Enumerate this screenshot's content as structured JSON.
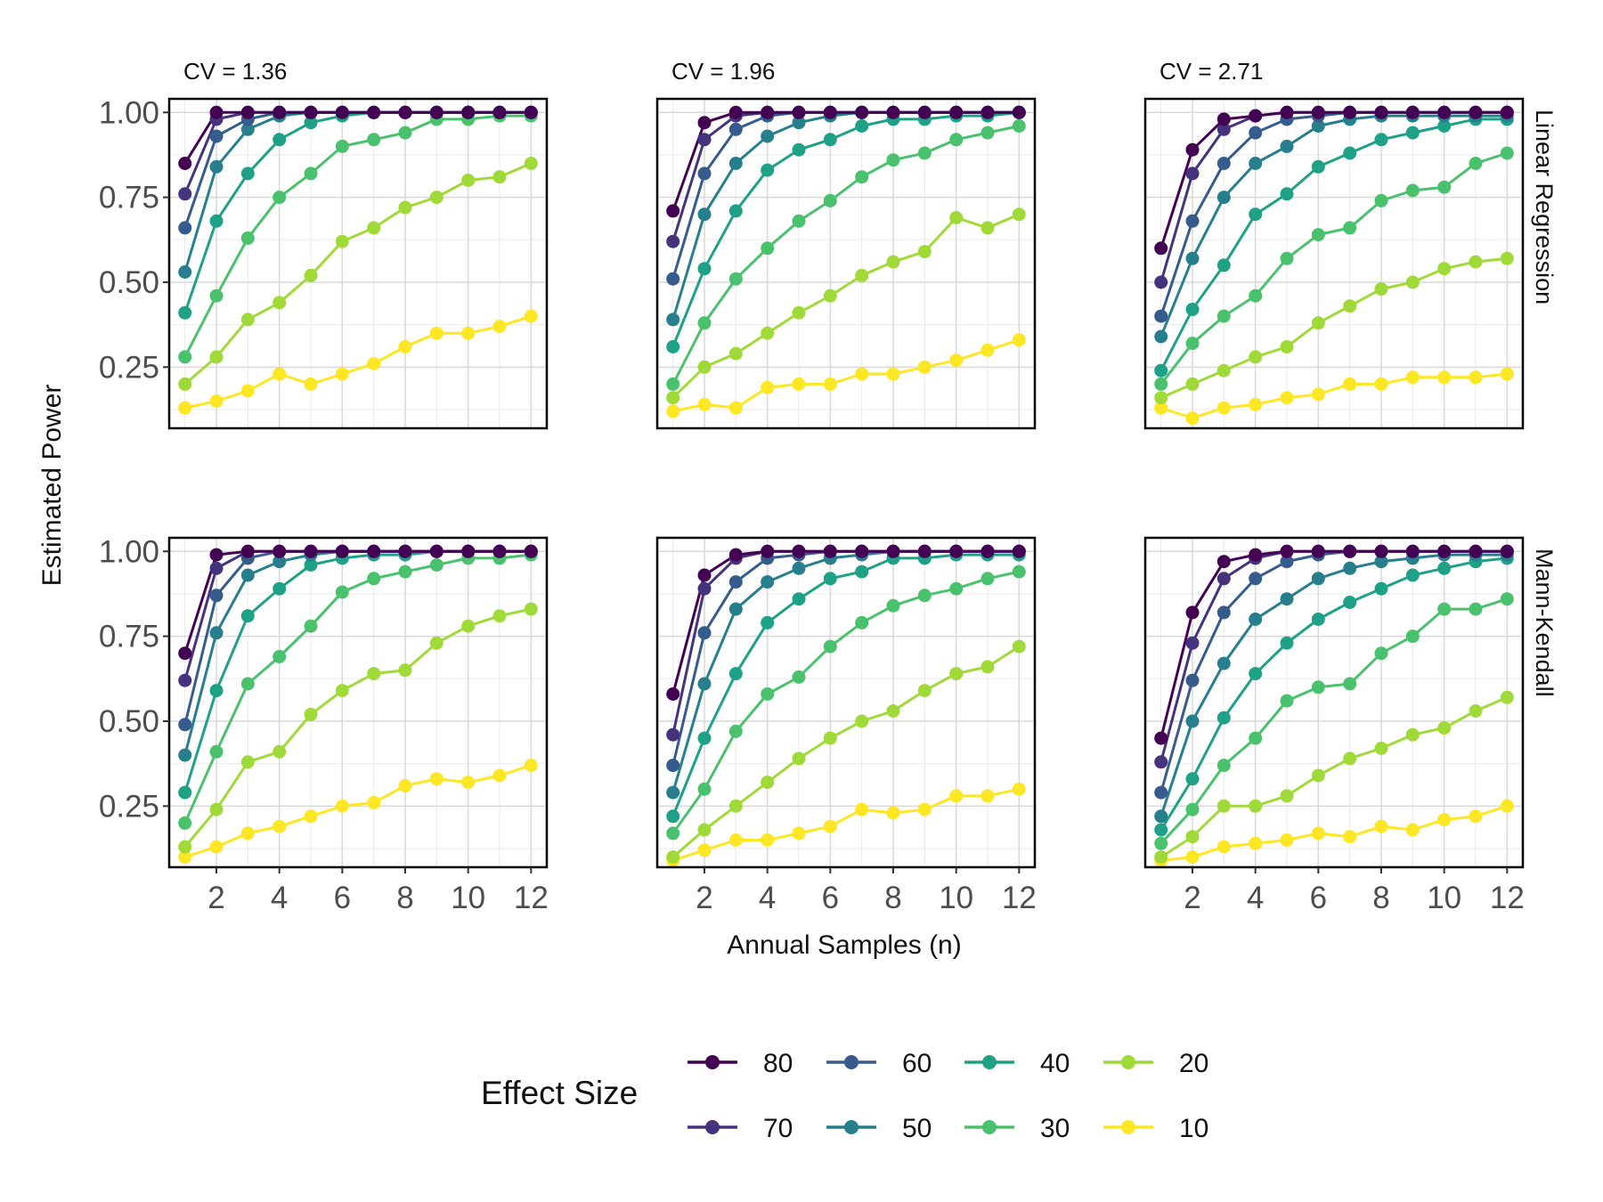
{
  "chart_data": {
    "type": "line",
    "x": [
      1,
      2,
      3,
      4,
      5,
      6,
      7,
      8,
      9,
      10,
      11,
      12
    ],
    "xlabel": "Annual Samples (n)",
    "ylabel": "Estimated Power",
    "x_ticks": [
      2,
      4,
      6,
      8,
      10,
      12
    ],
    "x_tick_labels": [
      "2",
      "4",
      "6",
      "8",
      "10",
      "12"
    ],
    "xlim": [
      0.5,
      12.5
    ],
    "y_ticks": [
      0.25,
      0.5,
      0.75,
      1.0
    ],
    "y_tick_labels": [
      "0.25",
      "0.50",
      "0.75",
      "1.00"
    ],
    "ylim": [
      0.07,
      1.04
    ],
    "grid": true,
    "columns": [
      "CV = 1.36",
      "CV = 1.96",
      "CV = 2.71"
    ],
    "rows": [
      "Linear Regression",
      "Mann-Kendall"
    ],
    "legend": {
      "title": "Effect Size",
      "position": "bottom",
      "entries": [
        "80",
        "60",
        "40",
        "20",
        "70",
        "50",
        "30",
        "10"
      ]
    },
    "series_colors": {
      "80": "#440154",
      "70": "#46337e",
      "60": "#365c8d",
      "50": "#277f8e",
      "40": "#1fa187",
      "30": "#4ac16d",
      "20": "#a0da39",
      "10": "#fde725"
    },
    "panels": [
      {
        "column": "CV = 1.36",
        "row": "Linear Regression",
        "series": [
          {
            "name": "80",
            "values": [
              0.85,
              1.0,
              1.0,
              1.0,
              1.0,
              1.0,
              1.0,
              1.0,
              1.0,
              1.0,
              1.0,
              1.0
            ]
          },
          {
            "name": "70",
            "values": [
              0.76,
              0.98,
              1.0,
              1.0,
              1.0,
              1.0,
              1.0,
              1.0,
              1.0,
              1.0,
              1.0,
              1.0
            ]
          },
          {
            "name": "60",
            "values": [
              0.66,
              0.93,
              0.98,
              1.0,
              1.0,
              1.0,
              1.0,
              1.0,
              1.0,
              1.0,
              1.0,
              1.0
            ]
          },
          {
            "name": "50",
            "values": [
              0.53,
              0.84,
              0.95,
              0.99,
              1.0,
              1.0,
              1.0,
              1.0,
              1.0,
              1.0,
              1.0,
              1.0
            ]
          },
          {
            "name": "40",
            "values": [
              0.41,
              0.68,
              0.82,
              0.92,
              0.97,
              0.99,
              1.0,
              1.0,
              1.0,
              1.0,
              1.0,
              1.0
            ]
          },
          {
            "name": "30",
            "values": [
              0.28,
              0.46,
              0.63,
              0.75,
              0.82,
              0.9,
              0.92,
              0.94,
              0.98,
              0.98,
              0.99,
              0.99
            ]
          },
          {
            "name": "20",
            "values": [
              0.2,
              0.28,
              0.39,
              0.44,
              0.52,
              0.62,
              0.66,
              0.72,
              0.75,
              0.8,
              0.81,
              0.85
            ]
          },
          {
            "name": "10",
            "values": [
              0.13,
              0.15,
              0.18,
              0.23,
              0.2,
              0.23,
              0.26,
              0.31,
              0.35,
              0.35,
              0.37,
              0.4
            ]
          }
        ]
      },
      {
        "column": "CV = 1.96",
        "row": "Linear Regression",
        "series": [
          {
            "name": "80",
            "values": [
              0.71,
              0.97,
              1.0,
              1.0,
              1.0,
              1.0,
              1.0,
              1.0,
              1.0,
              1.0,
              1.0,
              1.0
            ]
          },
          {
            "name": "70",
            "values": [
              0.62,
              0.92,
              0.99,
              1.0,
              1.0,
              1.0,
              1.0,
              1.0,
              1.0,
              1.0,
              1.0,
              1.0
            ]
          },
          {
            "name": "60",
            "values": [
              0.51,
              0.82,
              0.95,
              0.99,
              1.0,
              1.0,
              1.0,
              1.0,
              1.0,
              1.0,
              1.0,
              1.0
            ]
          },
          {
            "name": "50",
            "values": [
              0.39,
              0.7,
              0.85,
              0.93,
              0.97,
              0.99,
              1.0,
              1.0,
              1.0,
              1.0,
              1.0,
              1.0
            ]
          },
          {
            "name": "40",
            "values": [
              0.31,
              0.54,
              0.71,
              0.83,
              0.89,
              0.92,
              0.96,
              0.98,
              0.98,
              0.99,
              0.99,
              1.0
            ]
          },
          {
            "name": "30",
            "values": [
              0.2,
              0.38,
              0.51,
              0.6,
              0.68,
              0.74,
              0.81,
              0.86,
              0.88,
              0.92,
              0.94,
              0.96
            ]
          },
          {
            "name": "20",
            "values": [
              0.16,
              0.25,
              0.29,
              0.35,
              0.41,
              0.46,
              0.52,
              0.56,
              0.59,
              0.69,
              0.66,
              0.7
            ]
          },
          {
            "name": "10",
            "values": [
              0.12,
              0.14,
              0.13,
              0.19,
              0.2,
              0.2,
              0.23,
              0.23,
              0.25,
              0.27,
              0.3,
              0.33
            ]
          }
        ]
      },
      {
        "column": "CV = 2.71",
        "row": "Linear Regression",
        "series": [
          {
            "name": "80",
            "values": [
              0.6,
              0.89,
              0.98,
              0.99,
              1.0,
              1.0,
              1.0,
              1.0,
              1.0,
              1.0,
              1.0,
              1.0
            ]
          },
          {
            "name": "70",
            "values": [
              0.5,
              0.82,
              0.95,
              0.99,
              1.0,
              1.0,
              1.0,
              1.0,
              1.0,
              1.0,
              1.0,
              1.0
            ]
          },
          {
            "name": "60",
            "values": [
              0.4,
              0.68,
              0.85,
              0.94,
              0.98,
              0.99,
              1.0,
              1.0,
              1.0,
              1.0,
              1.0,
              1.0
            ]
          },
          {
            "name": "50",
            "values": [
              0.34,
              0.57,
              0.75,
              0.85,
              0.9,
              0.96,
              0.98,
              0.99,
              0.99,
              0.99,
              0.99,
              0.99
            ]
          },
          {
            "name": "40",
            "values": [
              0.24,
              0.42,
              0.55,
              0.7,
              0.76,
              0.84,
              0.88,
              0.92,
              0.94,
              0.96,
              0.98,
              0.98
            ]
          },
          {
            "name": "30",
            "values": [
              0.2,
              0.32,
              0.4,
              0.46,
              0.57,
              0.64,
              0.66,
              0.74,
              0.77,
              0.78,
              0.85,
              0.88
            ]
          },
          {
            "name": "20",
            "values": [
              0.16,
              0.2,
              0.24,
              0.28,
              0.31,
              0.38,
              0.43,
              0.48,
              0.5,
              0.54,
              0.56,
              0.57
            ]
          },
          {
            "name": "10",
            "values": [
              0.13,
              0.1,
              0.13,
              0.14,
              0.16,
              0.17,
              0.2,
              0.2,
              0.22,
              0.22,
              0.22,
              0.23
            ]
          }
        ]
      },
      {
        "column": "CV = 1.36",
        "row": "Mann-Kendall",
        "series": [
          {
            "name": "80",
            "values": [
              0.7,
              0.99,
              1.0,
              1.0,
              1.0,
              1.0,
              1.0,
              1.0,
              1.0,
              1.0,
              1.0,
              1.0
            ]
          },
          {
            "name": "70",
            "values": [
              0.62,
              0.95,
              1.0,
              1.0,
              1.0,
              1.0,
              1.0,
              1.0,
              1.0,
              1.0,
              1.0,
              1.0
            ]
          },
          {
            "name": "60",
            "values": [
              0.49,
              0.87,
              0.98,
              1.0,
              1.0,
              1.0,
              1.0,
              1.0,
              1.0,
              1.0,
              1.0,
              1.0
            ]
          },
          {
            "name": "50",
            "values": [
              0.4,
              0.76,
              0.93,
              0.97,
              0.99,
              1.0,
              1.0,
              1.0,
              1.0,
              1.0,
              1.0,
              1.0
            ]
          },
          {
            "name": "40",
            "values": [
              0.29,
              0.59,
              0.81,
              0.89,
              0.96,
              0.98,
              0.99,
              0.99,
              1.0,
              1.0,
              1.0,
              1.0
            ]
          },
          {
            "name": "30",
            "values": [
              0.2,
              0.41,
              0.61,
              0.69,
              0.78,
              0.88,
              0.92,
              0.94,
              0.96,
              0.98,
              0.98,
              0.99
            ]
          },
          {
            "name": "20",
            "values": [
              0.13,
              0.24,
              0.38,
              0.41,
              0.52,
              0.59,
              0.64,
              0.65,
              0.73,
              0.78,
              0.81,
              0.83
            ]
          },
          {
            "name": "10",
            "values": [
              0.1,
              0.13,
              0.17,
              0.19,
              0.22,
              0.25,
              0.26,
              0.31,
              0.33,
              0.32,
              0.34,
              0.37
            ]
          }
        ]
      },
      {
        "column": "CV = 1.96",
        "row": "Mann-Kendall",
        "series": [
          {
            "name": "80",
            "values": [
              0.58,
              0.93,
              0.99,
              1.0,
              1.0,
              1.0,
              1.0,
              1.0,
              1.0,
              1.0,
              1.0,
              1.0
            ]
          },
          {
            "name": "70",
            "values": [
              0.46,
              0.89,
              0.98,
              1.0,
              1.0,
              1.0,
              1.0,
              1.0,
              1.0,
              1.0,
              1.0,
              1.0
            ]
          },
          {
            "name": "60",
            "values": [
              0.37,
              0.76,
              0.91,
              0.98,
              0.99,
              1.0,
              1.0,
              1.0,
              1.0,
              1.0,
              1.0,
              1.0
            ]
          },
          {
            "name": "50",
            "values": [
              0.29,
              0.61,
              0.83,
              0.91,
              0.95,
              0.98,
              0.99,
              1.0,
              1.0,
              1.0,
              1.0,
              1.0
            ]
          },
          {
            "name": "40",
            "values": [
              0.22,
              0.45,
              0.64,
              0.79,
              0.86,
              0.92,
              0.94,
              0.98,
              0.98,
              0.99,
              0.99,
              0.99
            ]
          },
          {
            "name": "30",
            "values": [
              0.17,
              0.3,
              0.47,
              0.58,
              0.63,
              0.72,
              0.79,
              0.84,
              0.87,
              0.89,
              0.92,
              0.94
            ]
          },
          {
            "name": "20",
            "values": [
              0.1,
              0.18,
              0.25,
              0.32,
              0.39,
              0.45,
              0.5,
              0.53,
              0.59,
              0.64,
              0.66,
              0.72
            ]
          },
          {
            "name": "10",
            "values": [
              0.09,
              0.12,
              0.15,
              0.15,
              0.17,
              0.19,
              0.24,
              0.23,
              0.24,
              0.28,
              0.28,
              0.3
            ]
          }
        ]
      },
      {
        "column": "CV = 2.71",
        "row": "Mann-Kendall",
        "series": [
          {
            "name": "80",
            "values": [
              0.45,
              0.82,
              0.97,
              0.99,
              1.0,
              1.0,
              1.0,
              1.0,
              1.0,
              1.0,
              1.0,
              1.0
            ]
          },
          {
            "name": "70",
            "values": [
              0.38,
              0.73,
              0.92,
              0.98,
              1.0,
              1.0,
              1.0,
              1.0,
              1.0,
              1.0,
              1.0,
              1.0
            ]
          },
          {
            "name": "60",
            "values": [
              0.29,
              0.62,
              0.82,
              0.92,
              0.97,
              0.99,
              1.0,
              1.0,
              1.0,
              1.0,
              1.0,
              1.0
            ]
          },
          {
            "name": "50",
            "values": [
              0.22,
              0.5,
              0.67,
              0.8,
              0.86,
              0.92,
              0.95,
              0.97,
              0.98,
              0.99,
              0.99,
              0.99
            ]
          },
          {
            "name": "40",
            "values": [
              0.18,
              0.33,
              0.51,
              0.64,
              0.73,
              0.8,
              0.85,
              0.89,
              0.93,
              0.95,
              0.97,
              0.98
            ]
          },
          {
            "name": "30",
            "values": [
              0.14,
              0.24,
              0.37,
              0.45,
              0.56,
              0.6,
              0.61,
              0.7,
              0.75,
              0.83,
              0.83,
              0.86
            ]
          },
          {
            "name": "20",
            "values": [
              0.1,
              0.16,
              0.25,
              0.25,
              0.28,
              0.34,
              0.39,
              0.42,
              0.46,
              0.48,
              0.53,
              0.57
            ]
          },
          {
            "name": "10",
            "values": [
              0.09,
              0.1,
              0.13,
              0.14,
              0.15,
              0.17,
              0.16,
              0.19,
              0.18,
              0.21,
              0.22,
              0.25
            ]
          }
        ]
      }
    ]
  }
}
